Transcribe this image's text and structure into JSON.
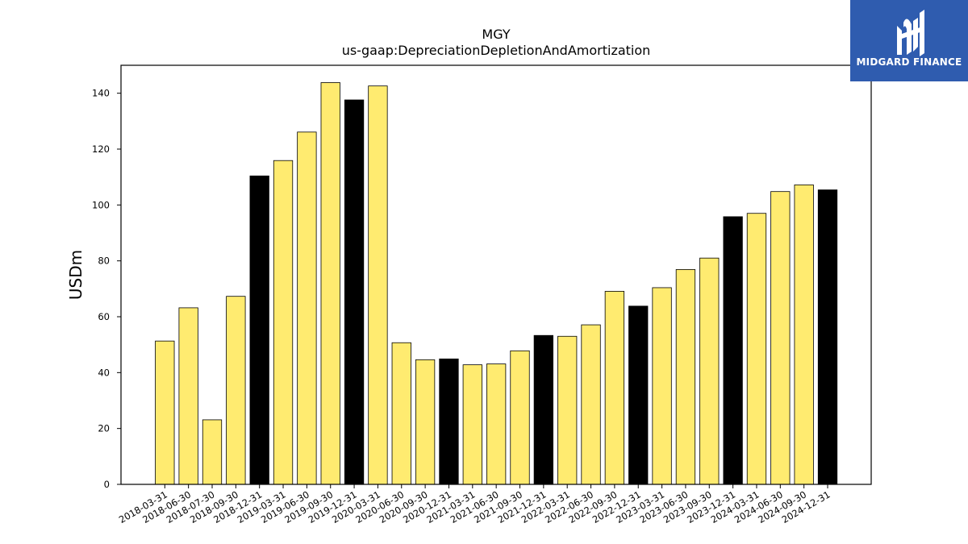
{
  "chart_data": {
    "type": "bar",
    "title": "MGY",
    "subtitle": "us-gaap:DepreciationDepletionAndAmortization",
    "ylabel": "USDm",
    "xlabel": "",
    "ylim": [
      0,
      150
    ],
    "yticks": [
      0,
      20,
      40,
      60,
      80,
      100,
      120,
      140
    ],
    "grid": false,
    "categories": [
      "2018-03-31",
      "2018-06-30",
      "2018-07-30",
      "2018-09-30",
      "2018-12-31",
      "2019-03-31",
      "2019-06-30",
      "2019-09-30",
      "2019-12-31",
      "2020-03-31",
      "2020-06-30",
      "2020-09-30",
      "2020-12-31",
      "2021-03-31",
      "2021-06-30",
      "2021-09-30",
      "2021-12-31",
      "2022-03-31",
      "2022-06-30",
      "2022-09-30",
      "2022-12-31",
      "2023-03-31",
      "2023-06-30",
      "2023-09-30",
      "2023-12-31",
      "2024-03-31",
      "2024-06-30",
      "2024-09-30",
      "2024-12-31"
    ],
    "values": [
      51.3,
      63.2,
      23.1,
      67.3,
      110.4,
      115.9,
      126.1,
      143.8,
      137.6,
      142.6,
      50.7,
      44.6,
      44.9,
      42.8,
      43.1,
      47.8,
      53.3,
      53.0,
      57.1,
      69.1,
      63.8,
      70.4,
      76.9,
      81.0,
      95.8,
      97.0,
      104.8,
      107.2,
      105.4
    ],
    "bar_kind": [
      "q",
      "q",
      "q",
      "q",
      "fy",
      "q",
      "q",
      "q",
      "fy",
      "q",
      "q",
      "q",
      "fy",
      "q",
      "q",
      "q",
      "fy",
      "q",
      "q",
      "q",
      "fy",
      "q",
      "q",
      "q",
      "fy",
      "q",
      "q",
      "q",
      "fy"
    ],
    "colors": {
      "q": "#ffeb70",
      "fy": "#000000",
      "edge": "#000000"
    }
  },
  "logo": {
    "text": "MIDGARD FINANCE",
    "background": "#2f5caf"
  }
}
